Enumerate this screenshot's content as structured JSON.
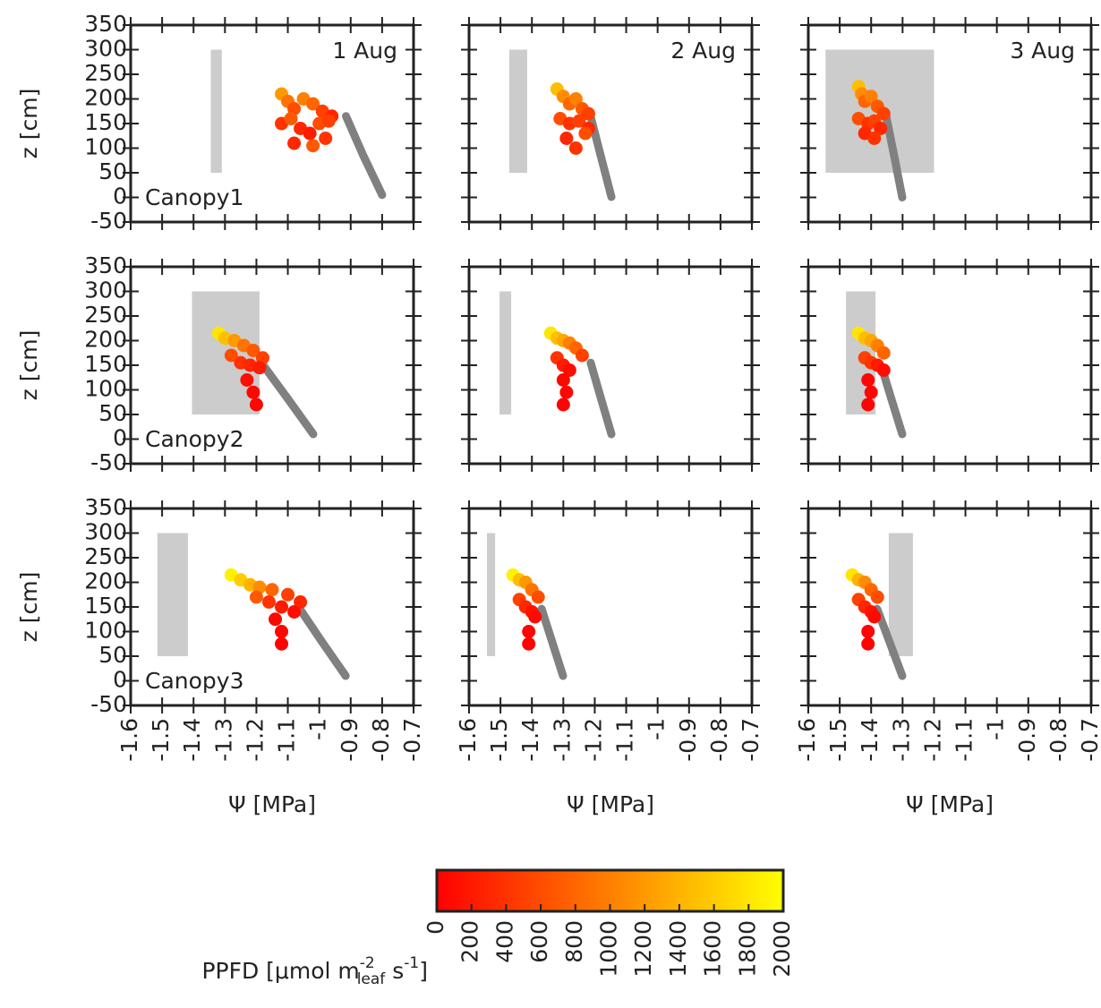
{
  "chart_data": [
    {
      "type": "scatter",
      "title": "1 Aug",
      "annotation": "Canopy1",
      "ylabel": "z [cm]",
      "show_xtick_labels": false,
      "show_ytick_labels": true,
      "xlim": [
        -1.6,
        -0.7
      ],
      "ylim": [
        -50,
        350
      ],
      "xticks": [
        -1.6,
        -1.5,
        -1.4,
        -1.3,
        -1.2,
        -1.1,
        -1.0,
        -0.9,
        -0.8,
        -0.7
      ],
      "yticks": [
        -50,
        0,
        50,
        100,
        150,
        200,
        250,
        300,
        350
      ],
      "shade": {
        "x": [
          -1.345,
          -1.31
        ],
        "y": [
          50,
          300
        ],
        "color": "#cccccc"
      },
      "stem": {
        "x": [
          -0.915,
          -0.86,
          -0.8
        ],
        "y": [
          165,
          85,
          5
        ],
        "color": "#808080"
      },
      "points": {
        "x": [
          -1.12,
          -1.1,
          -1.08,
          -1.05,
          -1.02,
          -0.99,
          -0.96,
          -1.12,
          -1.09,
          -1.06,
          -1.03,
          -1.0,
          -0.97,
          -1.08,
          -1.02,
          -0.98
        ],
        "y": [
          210,
          195,
          180,
          200,
          190,
          175,
          165,
          150,
          160,
          140,
          130,
          150,
          155,
          110,
          105,
          120
        ],
        "ppfd": [
          1200,
          900,
          600,
          1000,
          800,
          500,
          300,
          400,
          700,
          300,
          200,
          600,
          500,
          300,
          700,
          400
        ]
      }
    },
    {
      "type": "scatter",
      "title": "2 Aug",
      "show_xtick_labels": false,
      "show_ytick_labels": false,
      "xlim": [
        -1.6,
        -0.7
      ],
      "ylim": [
        -50,
        350
      ],
      "xticks": [
        -1.6,
        -1.5,
        -1.4,
        -1.3,
        -1.2,
        -1.1,
        -1.0,
        -0.9,
        -0.8,
        -0.7
      ],
      "yticks": [
        -50,
        0,
        50,
        100,
        150,
        200,
        250,
        300,
        350
      ],
      "shade": {
        "x": [
          -1.472,
          -1.415
        ],
        "y": [
          50,
          300
        ],
        "color": "#cccccc"
      },
      "stem": {
        "x": [
          -1.213,
          -1.18,
          -1.147
        ],
        "y": [
          164,
          82,
          1
        ],
        "color": "#808080"
      },
      "points": {
        "x": [
          -1.32,
          -1.3,
          -1.28,
          -1.26,
          -1.24,
          -1.22,
          -1.31,
          -1.28,
          -1.25,
          -1.22,
          -1.29,
          -1.26,
          -1.23
        ],
        "y": [
          220,
          205,
          190,
          200,
          180,
          170,
          160,
          150,
          155,
          140,
          120,
          100,
          130
        ],
        "ppfd": [
          1500,
          1100,
          800,
          1000,
          700,
          500,
          600,
          400,
          500,
          300,
          300,
          400,
          600
        ]
      }
    },
    {
      "type": "scatter",
      "title": "3 Aug",
      "show_xtick_labels": false,
      "show_ytick_labels": false,
      "xlim": [
        -1.6,
        -0.7
      ],
      "ylim": [
        -50,
        350
      ],
      "xticks": [
        -1.6,
        -1.5,
        -1.4,
        -1.3,
        -1.2,
        -1.1,
        -1.0,
        -0.9,
        -0.8,
        -0.7
      ],
      "yticks": [
        -50,
        0,
        50,
        100,
        150,
        200,
        250,
        300,
        350
      ],
      "shade": {
        "x": [
          -1.545,
          -1.2
        ],
        "y": [
          50,
          300
        ],
        "color": "#cccccc"
      },
      "stem": {
        "x": [
          -1.352,
          -1.326,
          -1.301
        ],
        "y": [
          164,
          82,
          0
        ],
        "color": "#808080"
      },
      "points": {
        "x": [
          -1.44,
          -1.43,
          -1.42,
          -1.4,
          -1.38,
          -1.36,
          -1.44,
          -1.41,
          -1.39,
          -1.37,
          -1.42,
          -1.39
        ],
        "y": [
          225,
          210,
          195,
          205,
          185,
          170,
          160,
          150,
          155,
          140,
          130,
          120
        ],
        "ppfd": [
          1500,
          1100,
          800,
          1000,
          700,
          500,
          600,
          400,
          500,
          300,
          300,
          400
        ]
      }
    },
    {
      "type": "scatter",
      "annotation": "Canopy2",
      "ylabel": "z [cm]",
      "show_xtick_labels": false,
      "show_ytick_labels": true,
      "xlim": [
        -1.6,
        -0.7
      ],
      "ylim": [
        -50,
        350
      ],
      "xticks": [
        -1.6,
        -1.5,
        -1.4,
        -1.3,
        -1.2,
        -1.1,
        -1.0,
        -0.9,
        -0.8,
        -0.7
      ],
      "yticks": [
        -50,
        0,
        50,
        100,
        150,
        200,
        250,
        300,
        350
      ],
      "shade": {
        "x": [
          -1.405,
          -1.19
        ],
        "y": [
          50,
          300
        ],
        "color": "#cccccc"
      },
      "stem": {
        "x": [
          -1.184,
          -1.1,
          -1.019
        ],
        "y": [
          155,
          82,
          10
        ],
        "color": "#808080"
      },
      "points": {
        "x": [
          -1.32,
          -1.3,
          -1.27,
          -1.24,
          -1.21,
          -1.18,
          -1.28,
          -1.25,
          -1.22,
          -1.19,
          -1.23,
          -1.21,
          -1.2
        ],
        "y": [
          215,
          205,
          200,
          190,
          180,
          165,
          170,
          155,
          150,
          145,
          120,
          95,
          70
        ],
        "ppfd": [
          1800,
          1500,
          1200,
          900,
          700,
          500,
          600,
          400,
          300,
          200,
          100,
          50,
          50
        ]
      }
    },
    {
      "type": "scatter",
      "show_xtick_labels": false,
      "show_ytick_labels": false,
      "xlim": [
        -1.6,
        -0.7
      ],
      "ylim": [
        -50,
        350
      ],
      "xticks": [
        -1.6,
        -1.5,
        -1.4,
        -1.3,
        -1.2,
        -1.1,
        -1.0,
        -0.9,
        -0.8,
        -0.7
      ],
      "yticks": [
        -50,
        0,
        50,
        100,
        150,
        200,
        250,
        300,
        350
      ],
      "shade": {
        "x": [
          -1.503,
          -1.466
        ],
        "y": [
          50,
          300
        ],
        "color": "#cccccc"
      },
      "stem": {
        "x": [
          -1.213,
          -1.18,
          -1.147
        ],
        "y": [
          155,
          82,
          10
        ],
        "color": "#808080"
      },
      "points": {
        "x": [
          -1.34,
          -1.32,
          -1.3,
          -1.28,
          -1.26,
          -1.24,
          -1.32,
          -1.3,
          -1.28,
          -1.3,
          -1.29,
          -1.3
        ],
        "y": [
          215,
          205,
          200,
          195,
          185,
          170,
          165,
          150,
          140,
          120,
          95,
          70
        ],
        "ppfd": [
          1800,
          1500,
          1300,
          1000,
          800,
          500,
          400,
          200,
          100,
          50,
          50,
          20
        ]
      }
    },
    {
      "type": "scatter",
      "show_xtick_labels": false,
      "show_ytick_labels": false,
      "xlim": [
        -1.6,
        -0.7
      ],
      "ylim": [
        -50,
        350
      ],
      "xticks": [
        -1.6,
        -1.5,
        -1.4,
        -1.3,
        -1.2,
        -1.1,
        -1.0,
        -0.9,
        -0.8,
        -0.7
      ],
      "yticks": [
        -50,
        0,
        50,
        100,
        150,
        200,
        250,
        300,
        350
      ],
      "shade": {
        "x": [
          -1.48,
          -1.386
        ],
        "y": [
          50,
          300
        ],
        "color": "#cccccc"
      },
      "stem": {
        "x": [
          -1.366,
          -1.334,
          -1.301
        ],
        "y": [
          145,
          78,
          10
        ],
        "color": "#808080"
      },
      "points": {
        "x": [
          -1.44,
          -1.42,
          -1.4,
          -1.38,
          -1.36,
          -1.42,
          -1.4,
          -1.38,
          -1.36,
          -1.41,
          -1.4,
          -1.41
        ],
        "y": [
          215,
          205,
          200,
          190,
          175,
          165,
          155,
          150,
          140,
          120,
          95,
          70
        ],
        "ppfd": [
          1800,
          1500,
          1300,
          1000,
          800,
          500,
          400,
          200,
          100,
          50,
          50,
          20
        ]
      }
    },
    {
      "type": "scatter",
      "annotation": "Canopy3",
      "ylabel": "z [cm]",
      "xlabel": "Ψ [MPa]",
      "show_xtick_labels": true,
      "show_ytick_labels": true,
      "xlim": [
        -1.6,
        -0.7
      ],
      "ylim": [
        -50,
        350
      ],
      "xticks": [
        -1.6,
        -1.5,
        -1.4,
        -1.3,
        -1.2,
        -1.1,
        -1.0,
        -0.9,
        -0.8,
        -0.7
      ],
      "yticks": [
        -50,
        0,
        50,
        100,
        150,
        200,
        250,
        300,
        350
      ],
      "shade": {
        "x": [
          -1.515,
          -1.418
        ],
        "y": [
          50,
          300
        ],
        "color": "#cccccc"
      },
      "stem": {
        "x": [
          -1.062,
          -0.99,
          -0.916
        ],
        "y": [
          146,
          78,
          10
        ],
        "color": "#808080"
      },
      "points": {
        "x": [
          -1.28,
          -1.25,
          -1.22,
          -1.19,
          -1.15,
          -1.1,
          -1.06,
          -1.2,
          -1.16,
          -1.12,
          -1.08,
          -1.14,
          -1.12,
          -1.12
        ],
        "y": [
          215,
          205,
          195,
          190,
          185,
          175,
          160,
          170,
          160,
          150,
          140,
          125,
          100,
          75
        ],
        "ppfd": [
          1900,
          1600,
          1400,
          1100,
          800,
          500,
          300,
          700,
          400,
          200,
          100,
          50,
          30,
          20
        ]
      }
    },
    {
      "type": "scatter",
      "xlabel": "Ψ [MPa]",
      "show_xtick_labels": true,
      "show_ytick_labels": false,
      "xlim": [
        -1.6,
        -0.7
      ],
      "ylim": [
        -50,
        350
      ],
      "xticks": [
        -1.6,
        -1.5,
        -1.4,
        -1.3,
        -1.2,
        -1.1,
        -1.0,
        -0.9,
        -0.8,
        -0.7
      ],
      "yticks": [
        -50,
        0,
        50,
        100,
        150,
        200,
        250,
        300,
        350
      ],
      "shade": {
        "x": [
          -1.543,
          -1.517
        ],
        "y": [
          50,
          300
        ],
        "color": "#cccccc"
      },
      "stem": {
        "x": [
          -1.369,
          -1.335,
          -1.301
        ],
        "y": [
          146,
          78,
          10
        ],
        "color": "#808080"
      },
      "points": {
        "x": [
          -1.46,
          -1.44,
          -1.42,
          -1.4,
          -1.38,
          -1.44,
          -1.42,
          -1.4,
          -1.39,
          -1.41,
          -1.41
        ],
        "y": [
          215,
          205,
          200,
          185,
          170,
          165,
          150,
          140,
          130,
          100,
          75
        ],
        "ppfd": [
          1900,
          1500,
          1200,
          900,
          600,
          500,
          300,
          150,
          80,
          40,
          20
        ]
      }
    },
    {
      "type": "scatter",
      "xlabel": "Ψ [MPa]",
      "show_xtick_labels": true,
      "show_ytick_labels": false,
      "xlim": [
        -1.6,
        -0.7
      ],
      "ylim": [
        -50,
        350
      ],
      "xticks": [
        -1.6,
        -1.5,
        -1.4,
        -1.3,
        -1.2,
        -1.1,
        -1.0,
        -0.9,
        -0.8,
        -0.7
      ],
      "yticks": [
        -50,
        0,
        50,
        100,
        150,
        200,
        250,
        300,
        350
      ],
      "shade": {
        "x": [
          -1.344,
          -1.267
        ],
        "y": [
          50,
          300
        ],
        "color": "#cccccc"
      },
      "stem": {
        "x": [
          -1.381,
          -1.341,
          -1.301
        ],
        "y": [
          146,
          78,
          10
        ],
        "color": "#808080"
      },
      "points": {
        "x": [
          -1.46,
          -1.44,
          -1.42,
          -1.4,
          -1.38,
          -1.44,
          -1.42,
          -1.4,
          -1.39,
          -1.41,
          -1.41
        ],
        "y": [
          215,
          205,
          200,
          185,
          170,
          165,
          150,
          140,
          130,
          100,
          75
        ],
        "ppfd": [
          1800,
          1400,
          1100,
          800,
          600,
          500,
          300,
          150,
          80,
          40,
          20
        ]
      }
    }
  ],
  "colorbar": {
    "lim": [
      0,
      2000
    ],
    "ticks": [
      0,
      200,
      400,
      600,
      800,
      1000,
      1200,
      1400,
      1600,
      1800,
      2000
    ],
    "cmap": [
      "#ff0000",
      "#ffff00"
    ],
    "label_parts": [
      {
        "text": "PPFD [μmol m"
      },
      {
        "text": "-2",
        "pos": "sup"
      },
      {
        "text": "leaf",
        "pos": "sub"
      },
      {
        "text": " s"
      },
      {
        "text": "-1",
        "pos": "sup"
      },
      {
        "text": "]"
      }
    ]
  }
}
